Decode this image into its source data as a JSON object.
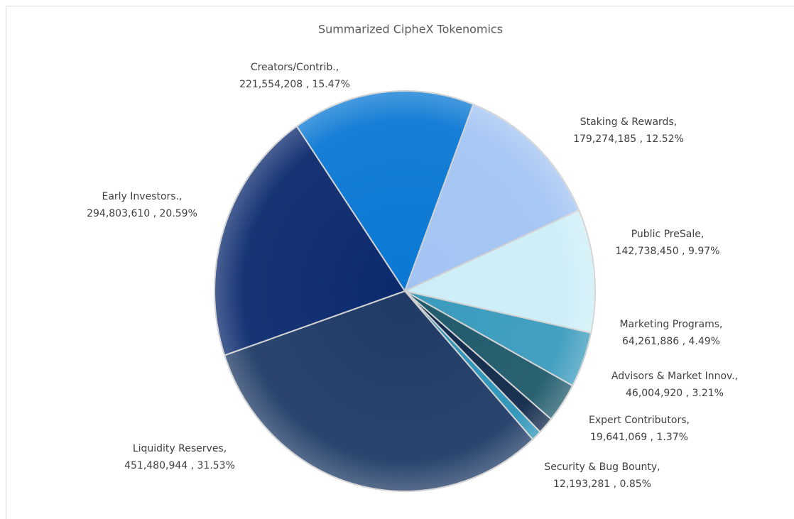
{
  "chart_data": {
    "type": "pie",
    "title": "Summarized CipheX Tokenomics",
    "categories": [
      "Creators/Contrib.,",
      "Staking & Rewards,",
      "Public PreSale,",
      "Marketing Programs,",
      "Advisors & Market Innov.,",
      "Expert Contributors,",
      "Security & Bug Bounty,",
      "Liquidity Reserves,",
      "Early Investors.,"
    ],
    "values": [
      221554208,
      179274185,
      142738450,
      64261886,
      46004920,
      19641069,
      12193281,
      451480944,
      294803610
    ],
    "value_labels": [
      "221,554,208 , 15.47%",
      "179,274,185 , 12.52%",
      "142,738,450 , 9.97%",
      "64,261,886 , 4.49%",
      "46,004,920 , 3.21%",
      "19,641,069 , 1.37%",
      "12,193,281 , 0.85%",
      "451,480,944 , 31.53%",
      "294,803,610 , 20.59%"
    ],
    "colors": [
      "#0a78d4",
      "#a3c4f3",
      "#cdeef8",
      "#3a9bbd",
      "#1f5a6b",
      "#10284a",
      "#2a93b8",
      "#1f3b66",
      "#0b2a6e"
    ]
  }
}
